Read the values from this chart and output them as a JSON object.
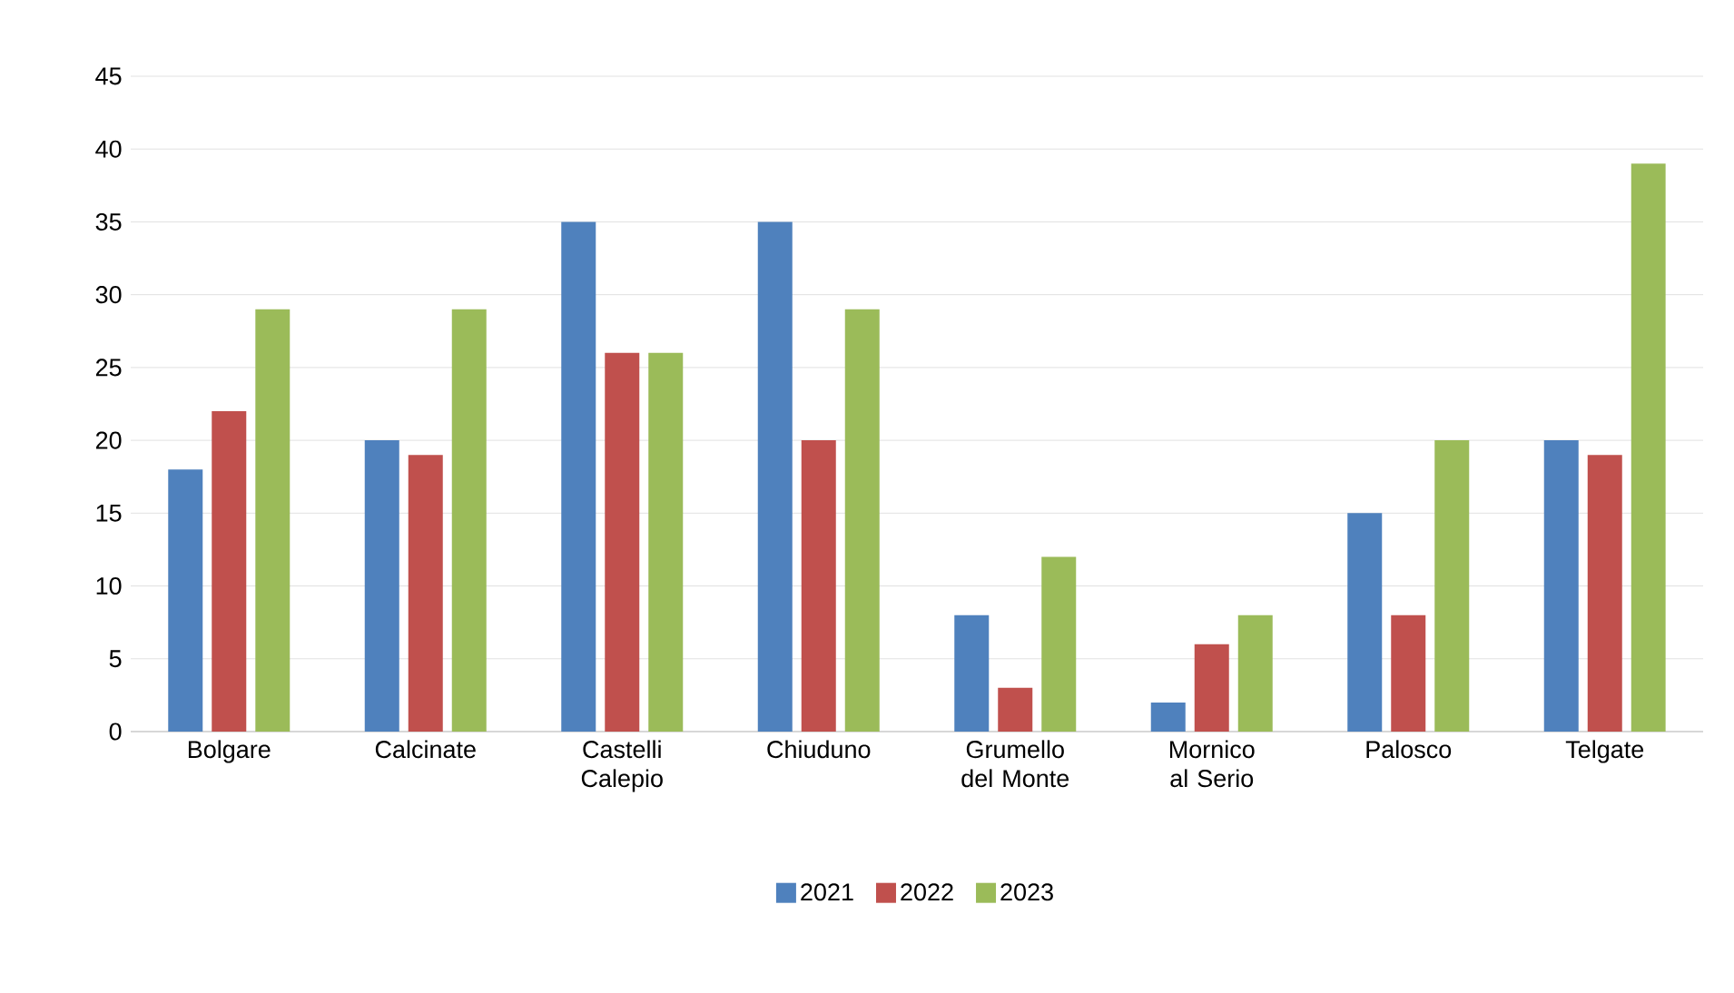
{
  "chart_data": {
    "type": "bar",
    "categories": [
      "Bolgare",
      "Calcinate",
      "Castelli Calepio",
      "Chiuduno",
      "Grumello del Monte",
      "Mornico al Serio",
      "Palosco",
      "Telgate"
    ],
    "series": [
      {
        "name": "2021",
        "color": "#4f81bd",
        "values": [
          18,
          20,
          35,
          35,
          8,
          2,
          15,
          20
        ]
      },
      {
        "name": "2022",
        "color": "#c0504d",
        "values": [
          22,
          19,
          26,
          20,
          3,
          6,
          8,
          19
        ]
      },
      {
        "name": "2023",
        "color": "#9bbb59",
        "values": [
          29,
          29,
          26,
          29,
          12,
          8,
          20,
          39
        ]
      }
    ],
    "ylim": [
      0,
      45
    ],
    "yticks": [
      0,
      5,
      10,
      15,
      20,
      25,
      30,
      35,
      40,
      45
    ],
    "grid": "y",
    "legend": "bottom"
  }
}
